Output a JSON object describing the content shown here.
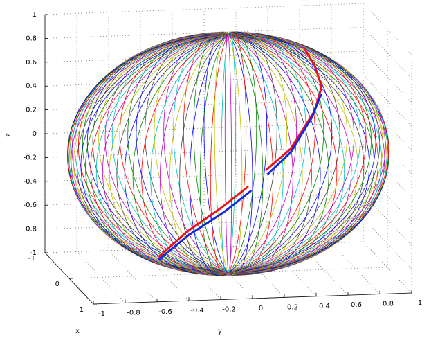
{
  "chart_data": {
    "type": "line3d",
    "xlabel": "x",
    "ylabel": "y",
    "zlabel": "z",
    "xlim": [
      -1,
      1
    ],
    "ylim": [
      -1,
      1
    ],
    "zlim": [
      -1,
      1
    ],
    "xticks": [
      -1,
      0,
      1
    ],
    "yticks": [
      -1,
      -0.8,
      -0.6,
      -0.4,
      -0.2,
      0,
      0.2,
      0.4,
      0.6,
      0.8,
      1
    ],
    "zticks": [
      -1,
      -0.8,
      -0.6,
      -0.4,
      -0.2,
      0,
      0.2,
      0.4,
      0.6,
      0.8,
      1
    ],
    "grid": true,
    "series": [
      {
        "color": "#e8141c",
        "x": [
          0.45,
          0.8,
          0.95,
          0.995,
          null,
          0.99,
          0.94,
          0.75,
          0.55,
          0.35,
          0.1
        ],
        "y": [
          -0.503,
          -0.382,
          -0.188,
          -0.03,
          null,
          0.088,
          0.248,
          0.429,
          0.503,
          0.49,
          0.463
        ],
        "z": [
          -0.742,
          -0.465,
          -0.24,
          -0.064,
          null,
          0.074,
          0.231,
          0.502,
          0.659,
          0.791,
          0.884
        ]
      },
      {
        "color": "#1428e0",
        "x": [
          0.43,
          0.78,
          0.94,
          0.99,
          null,
          0.99,
          0.93,
          0.76,
          0.6
        ],
        "y": [
          -0.5,
          -0.37,
          -0.17,
          -0.01,
          null,
          0.1,
          0.25,
          0.41,
          0.49
        ],
        "z": [
          -0.77,
          -0.5,
          -0.28,
          -0.1,
          null,
          0.04,
          0.2,
          0.45,
          0.6
        ]
      }
    ]
  }
}
